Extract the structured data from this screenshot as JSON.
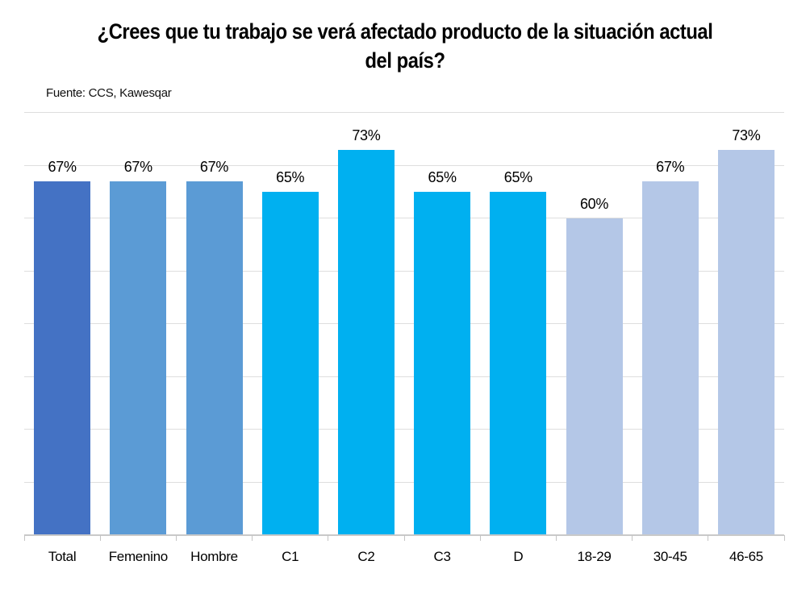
{
  "title": "¿Crees que tu trabajo se verá afectado producto de la situación actual del país?",
  "source": "Fuente: CCS, Kawesqar",
  "colors": {
    "background": "#FFFFFF",
    "text": "#000000",
    "gridline": "#DEDEDE",
    "axis": "#C9C9C9",
    "total_bar": "#4472C4",
    "gender_bars": "#5B9BD5",
    "segment_bars": "#00B0F0",
    "age_bars": "#B4C7E7"
  },
  "chart_data": {
    "type": "bar",
    "title": "¿Crees que tu trabajo se verá afectado producto de la situación actual del país?",
    "subtitle": "Fuente: CCS, Kawesqar",
    "categories": [
      "Total",
      "Femenino",
      "Hombre",
      "C1",
      "C2",
      "C3",
      "D",
      "18-29",
      "30-45",
      "46-65"
    ],
    "values": [
      67,
      67,
      67,
      65,
      73,
      65,
      65,
      60,
      67,
      73
    ],
    "value_labels": [
      "67%",
      "67%",
      "67%",
      "65%",
      "73%",
      "65%",
      "65%",
      "60%",
      "67%",
      "73%"
    ],
    "bar_colors": [
      "#4472C4",
      "#5B9BD5",
      "#5B9BD5",
      "#00B0F0",
      "#00B0F0",
      "#00B0F0",
      "#00B0F0",
      "#B4C7E7",
      "#B4C7E7",
      "#B4C7E7"
    ],
    "xlabel": "",
    "ylabel": "",
    "ylim": [
      0,
      80
    ],
    "grid_step": 10,
    "grid": true,
    "legend": false,
    "y_tick_labels_visible": false
  }
}
